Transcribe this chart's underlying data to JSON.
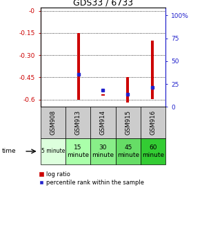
{
  "title": "GDS33 / 6733",
  "samples": [
    "GSM908",
    "GSM913",
    "GSM914",
    "GSM915",
    "GSM916"
  ],
  "time_labels": [
    "5 minute",
    "15\nminute",
    "30\nminute",
    "45\nminute",
    "60\nminute"
  ],
  "log_ratios": [
    0.0,
    -0.6,
    -0.575,
    -0.62,
    -0.595
  ],
  "bar_tops": [
    0.0,
    -0.15,
    -0.565,
    -0.45,
    -0.2
  ],
  "percentile_ranks": [
    null,
    33,
    17,
    13,
    20
  ],
  "ylim_left": [
    -0.65,
    0.02
  ],
  "ylim_right": [
    0,
    108.3
  ],
  "yticks_left": [
    0.0,
    -0.15,
    -0.3,
    -0.45,
    -0.6
  ],
  "yticks_right": [
    0,
    25,
    50,
    75,
    100
  ],
  "ytick_labels_left": [
    "-0",
    "-0.15",
    "-0.30",
    "-0.45",
    "-0.6"
  ],
  "ytick_labels_right": [
    "0",
    "25",
    "50",
    "75",
    "100%"
  ],
  "bar_color": "#cc0000",
  "dot_color": "#2222cc",
  "bar_width": 0.12,
  "gsm_bg_color": "#cccccc",
  "time_bg_colors": [
    "#ddffdd",
    "#aaffaa",
    "#88ee88",
    "#66dd66",
    "#33cc33"
  ],
  "left_axis_color": "#cc0000",
  "right_axis_color": "#2222cc",
  "fig_width": 2.93,
  "fig_height": 3.27
}
